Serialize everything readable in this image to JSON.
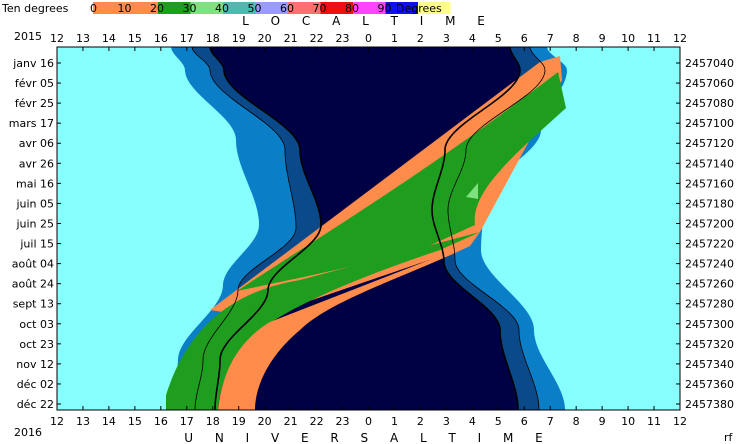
{
  "header": {
    "left_label": "Ten degrees",
    "right_label": "Degrees",
    "scale": [
      {
        "label": "0",
        "color": "#ff8c4a"
      },
      {
        "label": "10",
        "color": "#ff8c4a"
      },
      {
        "label": "20",
        "color": "#1f9d1f"
      },
      {
        "label": "30",
        "color": "#7ee07e"
      },
      {
        "label": "40",
        "color": "#4fb9b0"
      },
      {
        "label": "50",
        "color": "#9a9aff"
      },
      {
        "label": "60",
        "color": "#ff7070"
      },
      {
        "label": "70",
        "color": "#ee1010"
      },
      {
        "label": "80",
        "color": "#ff44ff"
      },
      {
        "label": "90",
        "color": "#1010ee"
      },
      {
        "label": "",
        "color": "#ffff88"
      }
    ]
  },
  "corner": {
    "top_year": "2015",
    "bottom_year": "2016",
    "rf": "rf"
  },
  "chart_data": {
    "type": "area",
    "title": "",
    "xlabel_top": "L O C A L   T I M E",
    "xlabel_bottom": "U N I V E R S A L   T I M E",
    "x_ticks": [
      "12",
      "13",
      "14",
      "15",
      "16",
      "17",
      "18",
      "19",
      "20",
      "21",
      "22",
      "23",
      "0",
      "1",
      "2",
      "3",
      "4",
      "5",
      "6",
      "7",
      "8",
      "9",
      "10",
      "11",
      "12"
    ],
    "y_labels_left": [
      "janv 16",
      "févr 05",
      "févr 25",
      "mars 17",
      "avr 06",
      "avr 26",
      "mai 16",
      "juin 05",
      "juin 25",
      "juil 15",
      "août 04",
      "août 24",
      "sept 13",
      "oct 03",
      "oct 23",
      "nov 12",
      "déc 02",
      "déc 22"
    ],
    "y_labels_right": [
      "2457040",
      "2457060",
      "2457080",
      "2457100",
      "2457120",
      "2457140",
      "2457160",
      "2457180",
      "2457200",
      "2457220",
      "2457240",
      "2457260",
      "2457280",
      "2457300",
      "2457320",
      "2457340",
      "2457360",
      "2457380"
    ],
    "colors": {
      "background": "#88ffff",
      "night": "#000044",
      "astronomical_twilight": "#0a4a8a",
      "civil_twilight": "#0a7fc8",
      "band_low": "#ff8c4a",
      "band_mid": "#1f9d1f",
      "band_high": "#7ee07e"
    }
  }
}
